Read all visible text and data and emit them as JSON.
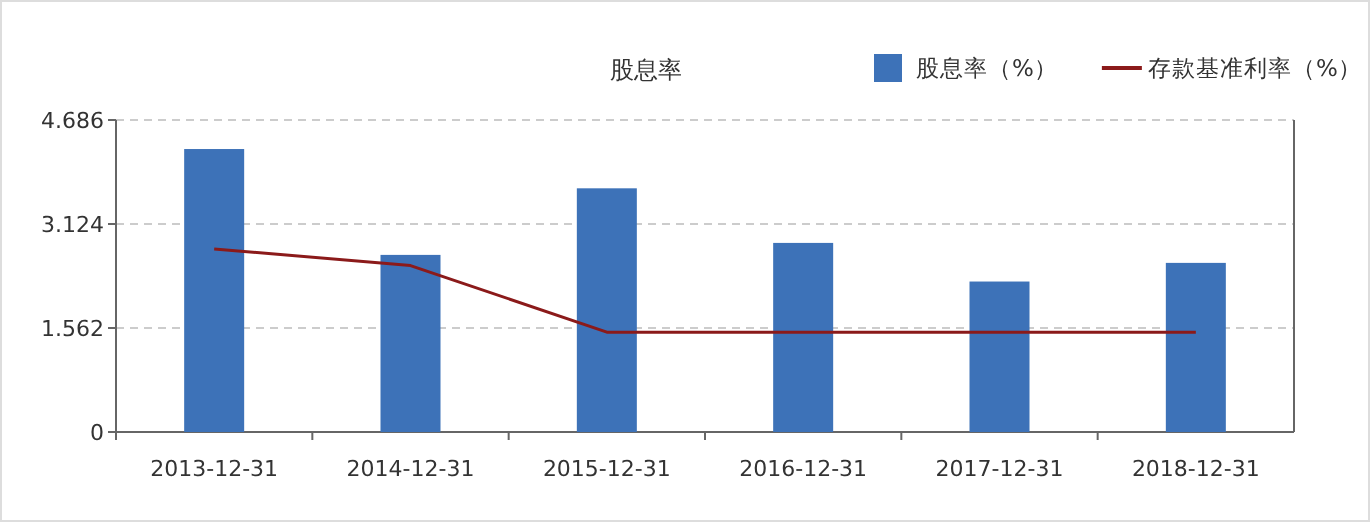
{
  "chart_data": {
    "type": "bar",
    "title": "股息率",
    "categories": [
      "2013-12-31",
      "2014-12-31",
      "2015-12-31",
      "2016-12-31",
      "2017-12-31",
      "2018-12-31"
    ],
    "series": [
      {
        "name": "股息率（%）",
        "color": "#3d72b8",
        "values": [
          4.25,
          2.66,
          3.66,
          2.84,
          2.26,
          2.54
        ]
      },
      {
        "name": "存款基准利率（%）",
        "type": "line",
        "color": "#8b1a1a",
        "values": [
          2.75,
          2.5,
          1.5,
          1.5,
          1.5,
          1.5
        ]
      }
    ],
    "ylim": [
      0,
      4.686
    ],
    "yticks": [
      0,
      1.562,
      3.124,
      4.686
    ],
    "grid": "y",
    "legend": "top right",
    "marker": "none",
    "line_style": "solid"
  }
}
